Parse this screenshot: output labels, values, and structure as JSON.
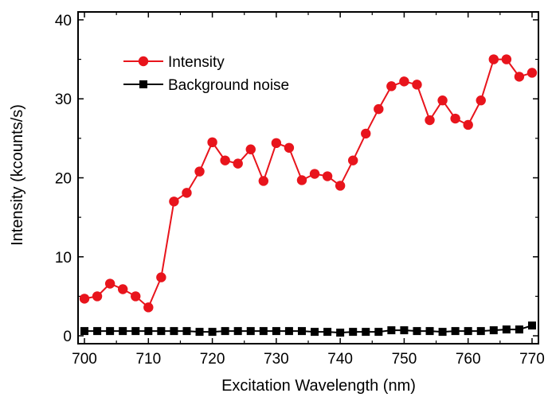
{
  "chart_data": {
    "type": "line",
    "xlabel": "Excitation Wavelength (nm)",
    "ylabel": "Intensity (kcounts/s)",
    "xlim": [
      699,
      771
    ],
    "ylim": [
      -1,
      41
    ],
    "xticks": [
      700,
      710,
      720,
      730,
      740,
      750,
      760,
      770
    ],
    "yticks": [
      0,
      10,
      20,
      30,
      40
    ],
    "grid": false,
    "legend_position": "upper-left",
    "series": [
      {
        "name": "Intensity",
        "color": "#e8141c",
        "marker": "circle",
        "x": [
          700,
          702,
          704,
          706,
          708,
          710,
          712,
          714,
          716,
          718,
          720,
          722,
          724,
          726,
          728,
          730,
          732,
          734,
          736,
          738,
          740,
          742,
          744,
          746,
          748,
          750,
          752,
          754,
          756,
          758,
          760,
          762,
          764,
          766,
          768,
          770
        ],
        "y": [
          4.7,
          5.0,
          6.6,
          5.9,
          5.0,
          3.6,
          7.4,
          17.0,
          18.1,
          20.8,
          24.5,
          22.2,
          21.8,
          23.6,
          19.6,
          24.4,
          23.8,
          19.7,
          20.5,
          20.2,
          19.0,
          22.2,
          25.6,
          28.7,
          31.6,
          32.2,
          31.8,
          27.3,
          29.8,
          27.5,
          26.7,
          29.8,
          35.0,
          35.0,
          32.8,
          33.3
        ]
      },
      {
        "name": "Background noise",
        "color": "#000000",
        "marker": "square",
        "x": [
          700,
          702,
          704,
          706,
          708,
          710,
          712,
          714,
          716,
          718,
          720,
          722,
          724,
          726,
          728,
          730,
          732,
          734,
          736,
          738,
          740,
          742,
          744,
          746,
          748,
          750,
          752,
          754,
          756,
          758,
          760,
          762,
          764,
          766,
          768,
          770
        ],
        "y": [
          0.6,
          0.6,
          0.6,
          0.6,
          0.6,
          0.6,
          0.6,
          0.6,
          0.6,
          0.5,
          0.5,
          0.6,
          0.6,
          0.6,
          0.6,
          0.6,
          0.6,
          0.6,
          0.5,
          0.5,
          0.4,
          0.5,
          0.5,
          0.5,
          0.7,
          0.7,
          0.6,
          0.6,
          0.5,
          0.6,
          0.6,
          0.6,
          0.7,
          0.8,
          0.8,
          1.3
        ]
      }
    ]
  }
}
